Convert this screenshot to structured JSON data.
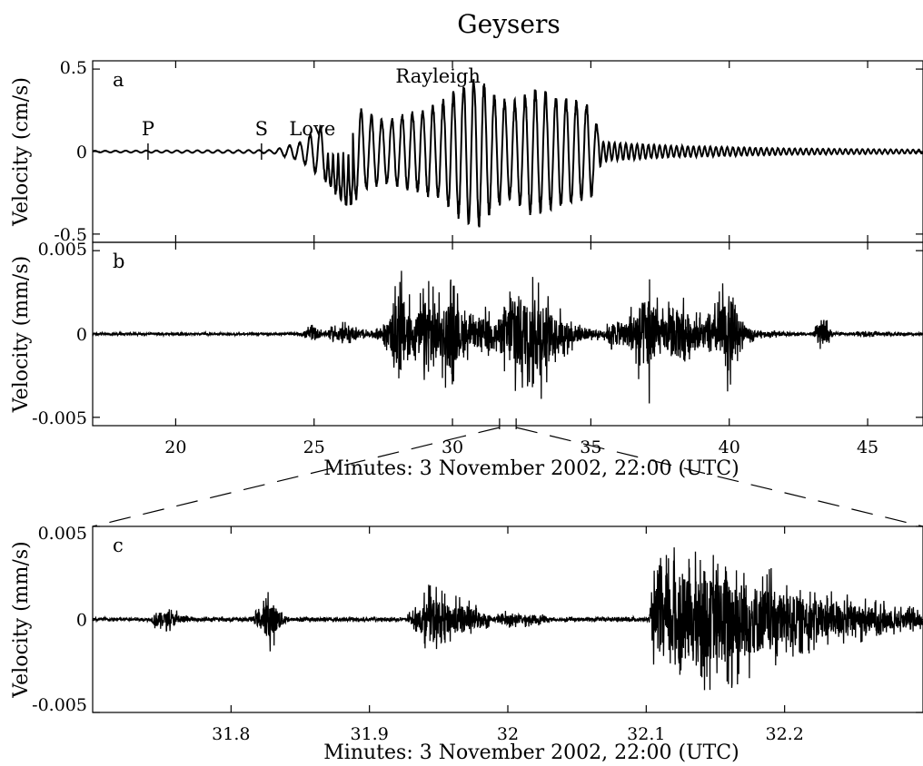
{
  "figure": {
    "title": "Geysers",
    "xlabel_top": "Minutes: 3 November 2002, 22:00 (UTC)",
    "xlabel_bottom": "Minutes: 3 November 2002, 22:00 (UTC)"
  },
  "chart_data": [
    {
      "type": "line",
      "panel": "a",
      "ylabel": "Velocity (cm/s)",
      "xlim": [
        17,
        47
      ],
      "ylim": [
        -0.55,
        0.55
      ],
      "xticks": [
        20,
        25,
        30,
        35,
        40,
        45
      ],
      "yticks": [
        {
          "v": 0.5,
          "label": "0.5"
        },
        {
          "v": 0,
          "label": "0"
        },
        {
          "v": -0.5,
          "label": "-0.5"
        }
      ],
      "annotations": [
        {
          "text": "P",
          "x": 19.0
        },
        {
          "text": "S",
          "x": 23.1
        },
        {
          "text": "Love",
          "x": 24.3
        },
        {
          "text": "Rayleigh",
          "x": 28.6
        }
      ],
      "series": [
        {
          "values_description_note": "",
          "envelope": [
            [
              17,
              0.005
            ],
            [
              23.5,
              0.01
            ],
            [
              24.5,
              0.06
            ],
            [
              25.5,
              0.2
            ],
            [
              26.2,
              0.36
            ],
            [
              26.8,
              0.25
            ],
            [
              27.5,
              0.2
            ],
            [
              28.5,
              0.25
            ],
            [
              29.5,
              0.3
            ],
            [
              30.3,
              0.42
            ],
            [
              30.9,
              0.48
            ],
            [
              31.6,
              0.35
            ],
            [
              32.1,
              0.3
            ],
            [
              32.9,
              0.4
            ],
            [
              33.8,
              0.35
            ],
            [
              35.0,
              0.3
            ],
            [
              35.4,
              0.06
            ],
            [
              38,
              0.035
            ],
            [
              42,
              0.02
            ],
            [
              47,
              0.012
            ]
          ],
          "period_min": 0.37
        }
      ]
    },
    {
      "type": "line",
      "panel": "b",
      "ylabel": "Velocity (mm/s)",
      "xlim": [
        17,
        47
      ],
      "ylim": [
        -0.0055,
        0.0055
      ],
      "xticks": [
        20,
        25,
        30,
        35,
        40,
        45
      ],
      "yticks": [
        {
          "v": 0.005,
          "label": "0.005"
        },
        {
          "v": 0,
          "label": "0"
        },
        {
          "v": -0.005,
          "label": "-0.005"
        }
      ],
      "series": [
        {
          "envelope": [
            [
              17,
              0.0001
            ],
            [
              24.5,
              0.0001
            ],
            [
              25.0,
              0.0008
            ],
            [
              25.3,
              0.0002
            ],
            [
              26.0,
              0.0008
            ],
            [
              27.0,
              0.0002
            ],
            [
              27.7,
              0.0012
            ],
            [
              28.1,
              0.0045
            ],
            [
              28.6,
              0.0015
            ],
            [
              29.2,
              0.0045
            ],
            [
              29.5,
              0.0025
            ],
            [
              29.9,
              0.0038
            ],
            [
              30.4,
              0.002
            ],
            [
              30.7,
              0.0012
            ],
            [
              31.2,
              0.0018
            ],
            [
              31.5,
              0.0009
            ],
            [
              32.1,
              0.0035
            ],
            [
              32.3,
              0.0045
            ],
            [
              32.8,
              0.003
            ],
            [
              33.1,
              0.0045
            ],
            [
              33.6,
              0.002
            ],
            [
              34.2,
              0.0012
            ],
            [
              35.0,
              0.0004
            ],
            [
              35.5,
              0.0004
            ],
            [
              35.8,
              0.0012
            ],
            [
              36.3,
              0.0012
            ],
            [
              37.1,
              0.0045
            ],
            [
              37.5,
              0.0015
            ],
            [
              38.3,
              0.003
            ],
            [
              38.7,
              0.0015
            ],
            [
              39.3,
              0.0012
            ],
            [
              40.0,
              0.0042
            ],
            [
              40.5,
              0.0008
            ],
            [
              41.0,
              0.0003
            ],
            [
              43.0,
              0.0001
            ],
            [
              43.4,
              0.0013
            ],
            [
              43.8,
              0.0001
            ],
            [
              45.0,
              0.0002
            ],
            [
              47,
              0.0001
            ]
          ]
        }
      ],
      "zoom_region": [
        31.7,
        32.3
      ]
    },
    {
      "type": "line",
      "panel": "c",
      "ylabel": "Velocity (mm/s)",
      "xlim": [
        31.7,
        32.3
      ],
      "ylim": [
        -0.005,
        0.005
      ],
      "xticks": [
        {
          "v": 31.8,
          "label": "31.8"
        },
        {
          "v": 31.9,
          "label": "31.9"
        },
        {
          "v": 32.0,
          "label": "32"
        },
        {
          "v": 32.1,
          "label": "32.1"
        },
        {
          "v": 32.2,
          "label": "32.2"
        }
      ],
      "yticks": [
        {
          "v": 0.005,
          "label": "0.005"
        },
        {
          "v": 0,
          "label": "0"
        },
        {
          "v": -0.005,
          "label": "-0.005"
        }
      ],
      "series": [
        {
          "envelope": [
            [
              31.7,
              0.00012
            ],
            [
              31.742,
              0.00012
            ],
            [
              31.745,
              0.0007
            ],
            [
              31.76,
              0.0006
            ],
            [
              31.77,
              0.00015
            ],
            [
              31.815,
              0.00015
            ],
            [
              31.82,
              0.0008
            ],
            [
              31.828,
              0.0018
            ],
            [
              31.836,
              0.0008
            ],
            [
              31.842,
              0.00015
            ],
            [
              31.925,
              0.00015
            ],
            [
              31.935,
              0.0008
            ],
            [
              31.945,
              0.0023
            ],
            [
              31.955,
              0.0014
            ],
            [
              31.97,
              0.0012
            ],
            [
              31.98,
              0.0008
            ],
            [
              31.99,
              0.0002
            ],
            [
              31.995,
              0.0005
            ],
            [
              32.02,
              0.0004
            ],
            [
              32.03,
              0.00015
            ],
            [
              32.102,
              0.00015
            ],
            [
              32.106,
              0.003
            ],
            [
              32.12,
              0.004
            ],
            [
              32.14,
              0.0038
            ],
            [
              32.16,
              0.0042
            ],
            [
              32.19,
              0.0028
            ],
            [
              32.22,
              0.0018
            ],
            [
              32.26,
              0.0012
            ],
            [
              32.3,
              0.0006
            ]
          ]
        }
      ]
    }
  ]
}
